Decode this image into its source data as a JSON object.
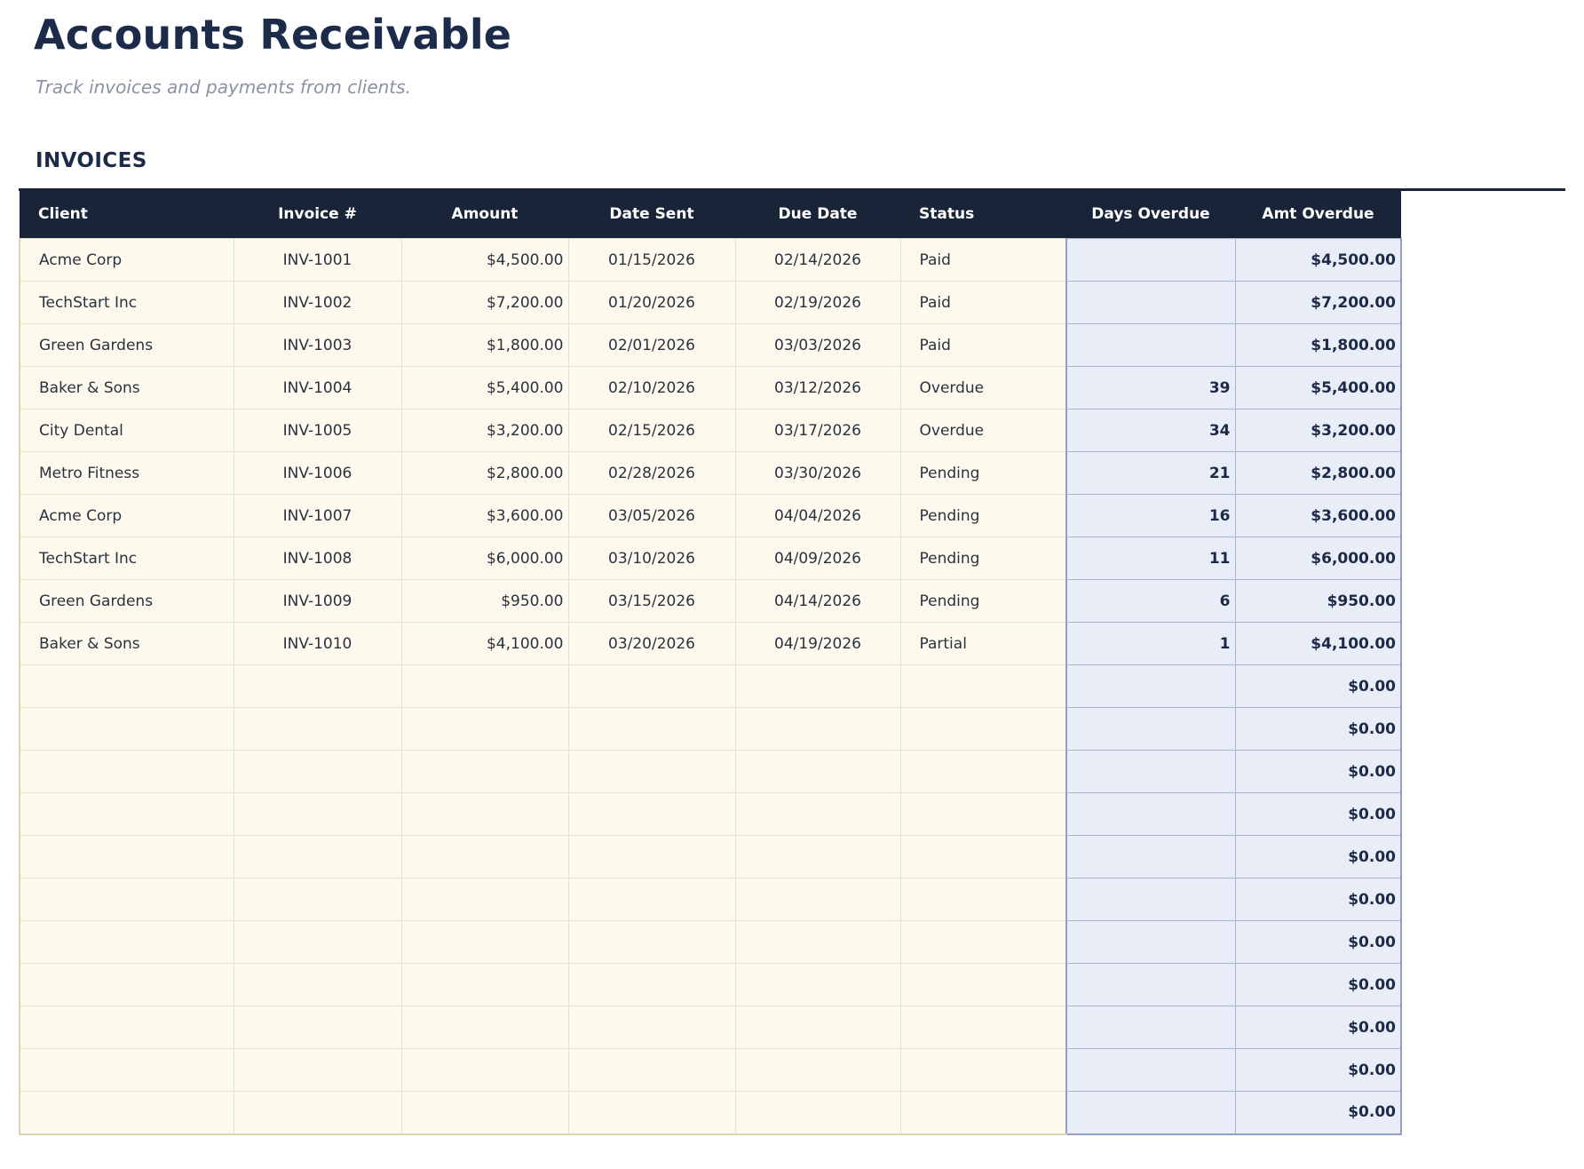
{
  "page": {
    "title": "Accounts Receivable",
    "subtitle": "Track invoices and payments from clients.",
    "section_label": "INVOICES"
  },
  "colors": {
    "header_bg": "#1a2438",
    "header_text": "#ffffff",
    "title_text": "#1d2b4b",
    "subtitle_text": "#8a92a3",
    "body_text": "#2a3240",
    "strong_text": "#1c2a47",
    "cream_bg": "#fdf9ed",
    "cream_border": "#e9e1c6",
    "cream_border_outer": "#dcd3b2",
    "blue_bg": "#e9edf7",
    "blue_border": "#a9b4d0",
    "blue_border_outer": "#93a0bf"
  },
  "table": {
    "columns": [
      {
        "key": "client",
        "label": "Client",
        "align": "left",
        "header_align": "left",
        "blue": false
      },
      {
        "key": "invoice_number",
        "label": "Invoice #",
        "align": "center",
        "header_align": "center",
        "blue": false
      },
      {
        "key": "amount",
        "label": "Amount",
        "align": "right",
        "header_align": "center",
        "blue": false
      },
      {
        "key": "date_sent",
        "label": "Date Sent",
        "align": "center",
        "header_align": "center",
        "blue": false
      },
      {
        "key": "due_date",
        "label": "Due Date",
        "align": "center",
        "header_align": "center",
        "blue": false
      },
      {
        "key": "status",
        "label": "Status",
        "align": "left",
        "header_align": "left",
        "blue": false
      },
      {
        "key": "days_overdue",
        "label": "Days Overdue",
        "align": "right",
        "header_align": "center",
        "blue": true,
        "strong": true
      },
      {
        "key": "amt_overdue",
        "label": "Amt Overdue",
        "align": "right",
        "header_align": "center",
        "blue": true,
        "strong": true
      }
    ],
    "rows": [
      [
        "Acme Corp",
        "INV-1001",
        "$4,500.00",
        "01/15/2026",
        "02/14/2026",
        "Paid",
        "",
        "$4,500.00"
      ],
      [
        "TechStart Inc",
        "INV-1002",
        "$7,200.00",
        "01/20/2026",
        "02/19/2026",
        "Paid",
        "",
        "$7,200.00"
      ],
      [
        "Green Gardens",
        "INV-1003",
        "$1,800.00",
        "02/01/2026",
        "03/03/2026",
        "Paid",
        "",
        "$1,800.00"
      ],
      [
        "Baker & Sons",
        "INV-1004",
        "$5,400.00",
        "02/10/2026",
        "03/12/2026",
        "Overdue",
        "39",
        "$5,400.00"
      ],
      [
        "City Dental",
        "INV-1005",
        "$3,200.00",
        "02/15/2026",
        "03/17/2026",
        "Overdue",
        "34",
        "$3,200.00"
      ],
      [
        "Metro Fitness",
        "INV-1006",
        "$2,800.00",
        "02/28/2026",
        "03/30/2026",
        "Pending",
        "21",
        "$2,800.00"
      ],
      [
        "Acme Corp",
        "INV-1007",
        "$3,600.00",
        "03/05/2026",
        "04/04/2026",
        "Pending",
        "16",
        "$3,600.00"
      ],
      [
        "TechStart Inc",
        "INV-1008",
        "$6,000.00",
        "03/10/2026",
        "04/09/2026",
        "Pending",
        "11",
        "$6,000.00"
      ],
      [
        "Green Gardens",
        "INV-1009",
        "$950.00",
        "03/15/2026",
        "04/14/2026",
        "Pending",
        "6",
        "$950.00"
      ],
      [
        "Baker & Sons",
        "INV-1010",
        "$4,100.00",
        "03/20/2026",
        "04/19/2026",
        "Partial",
        "1",
        "$4,100.00"
      ]
    ],
    "empty_row_count": 11,
    "empty_row_amt_overdue": "$0.00"
  }
}
